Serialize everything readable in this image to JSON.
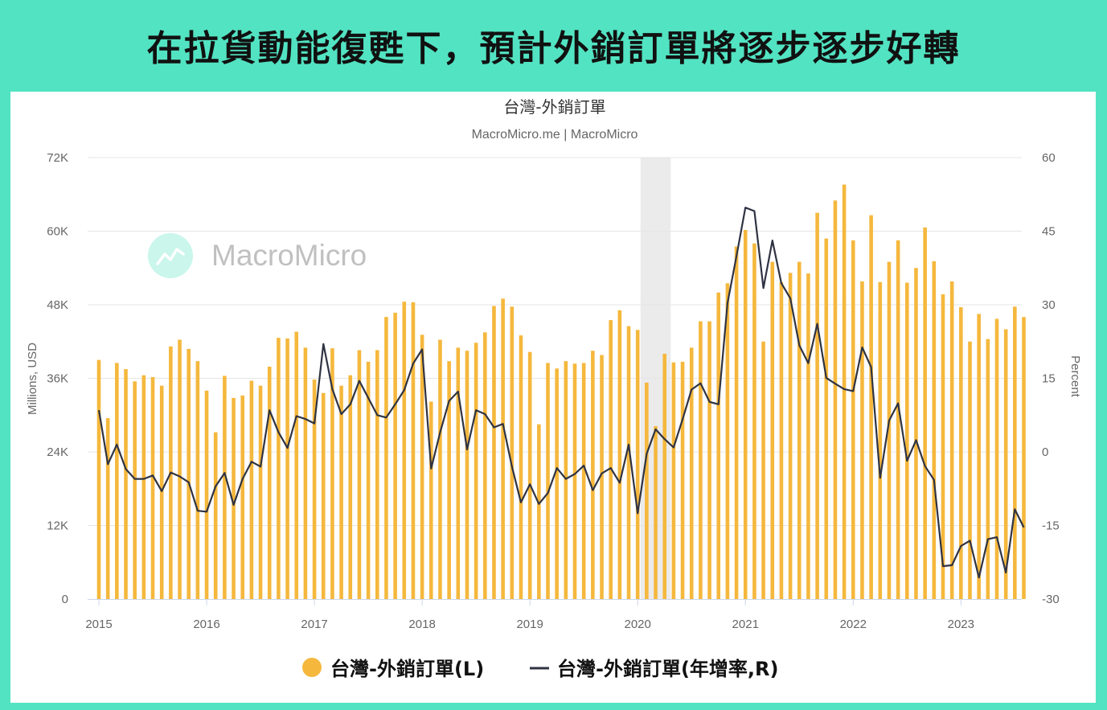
{
  "headline": "在拉貨動能復甦下，預計外銷訂單將逐步逐步好轉",
  "watermark": {
    "text": "MacroMicro",
    "icon": "chart-trend-icon"
  },
  "colors": {
    "bar": "#f5b83d",
    "line": "#2f3342",
    "shade": "#ebebeb",
    "frame": "#52e3c2"
  },
  "chart_data": {
    "type": "bar",
    "title": "台灣-外銷訂單",
    "subtitle": "MacroMicro.me | MacroMicro",
    "ylabel_left": "Millions, USD",
    "ylabel_right": "Percent",
    "ylim_left": [
      0,
      72000
    ],
    "ylim_right": [
      -30,
      60
    ],
    "yticks_left": [
      "0",
      "12K",
      "24K",
      "36K",
      "48K",
      "60K",
      "72K"
    ],
    "yticks_right": [
      "-30",
      "-15",
      "0",
      "15",
      "30",
      "45",
      "60"
    ],
    "xticks": [
      "2015",
      "2016",
      "2017",
      "2018",
      "2019",
      "2020",
      "2021",
      "2022",
      "2023"
    ],
    "x_start": "2015-01",
    "shaded_period": [
      "2020-02",
      "2020-04"
    ],
    "grid": true,
    "legend_position": "bottom",
    "series": [
      {
        "name": "台灣-外銷訂單(L)",
        "type": "bar",
        "axis": "left",
        "values": [
          39000,
          29500,
          38500,
          37500,
          35500,
          36500,
          36200,
          34800,
          41200,
          42300,
          40800,
          38800,
          34000,
          27200,
          36400,
          32800,
          33200,
          35600,
          34800,
          37900,
          42600,
          42500,
          43600,
          41000,
          35800,
          33600,
          40900,
          34800,
          36500,
          40600,
          38700,
          40600,
          46000,
          46700,
          48500,
          48400,
          43100,
          32200,
          42300,
          38800,
          41000,
          40500,
          41800,
          43500,
          47800,
          49000,
          47700,
          43000,
          40300,
          28500,
          38500,
          37600,
          38800,
          38400,
          38500,
          40500,
          39800,
          45500,
          47100,
          44500,
          43900,
          35300,
          28200,
          40000,
          38600,
          38700,
          41000,
          45300,
          45300,
          50000,
          51500,
          57500,
          60200,
          58000,
          42000,
          55000,
          51700,
          53200,
          55000,
          53100,
          63000,
          58800,
          65000,
          67600,
          58500,
          51800,
          62600,
          51700,
          55000,
          58500,
          51600,
          54000,
          60600,
          55100,
          49700,
          51800,
          47600,
          42000,
          46500,
          42400,
          45700,
          44000,
          47700,
          46000
        ]
      },
      {
        "name": "台灣-外銷訂單(年增率,R)",
        "type": "line",
        "axis": "right",
        "values": [
          8.5,
          -2.5,
          1.5,
          -3.5,
          -5.5,
          -5.5,
          -4.8,
          -8,
          -4.2,
          -5,
          -6.2,
          -12,
          -12.2,
          -7,
          -4.3,
          -10.8,
          -5.5,
          -2,
          -3,
          8.5,
          4,
          0.8,
          7.3,
          6.7,
          5.8,
          22,
          12.8,
          7.7,
          9.7,
          14.5,
          11,
          7.5,
          7,
          9.7,
          12.6,
          18,
          20.9,
          -3.4,
          4,
          10.4,
          12.3,
          0.5,
          8.5,
          7.7,
          5,
          5.7,
          -3,
          -10.3,
          -6.6,
          -10.6,
          -8.4,
          -3.3,
          -5.5,
          -4.5,
          -2.8,
          -7.8,
          -4.4,
          -3.3,
          -6.3,
          1.5,
          -12.5,
          -0.4,
          4.6,
          2.6,
          0.9,
          6.6,
          12.7,
          14,
          10.2,
          9.7,
          30.3,
          39.9,
          49.8,
          49.1,
          33.4,
          43.1,
          34.4,
          31.3,
          21.7,
          18.1,
          26.1,
          15.1,
          13.9,
          12.8,
          12.4,
          21.3,
          17.3,
          -5.3,
          6.4,
          9.9,
          -1.8,
          2.4,
          -2.9,
          -5.7,
          -23.3,
          -23.1,
          -19.2,
          -18.1,
          -25.6,
          -17.8,
          -17.4,
          -24.6,
          -11.7,
          -15.4
        ]
      }
    ]
  },
  "legend": [
    {
      "label": "台灣-外銷訂單(L)",
      "symbol": "circle"
    },
    {
      "label": "台灣-外銷訂單(年增率,R)",
      "symbol": "line"
    }
  ]
}
